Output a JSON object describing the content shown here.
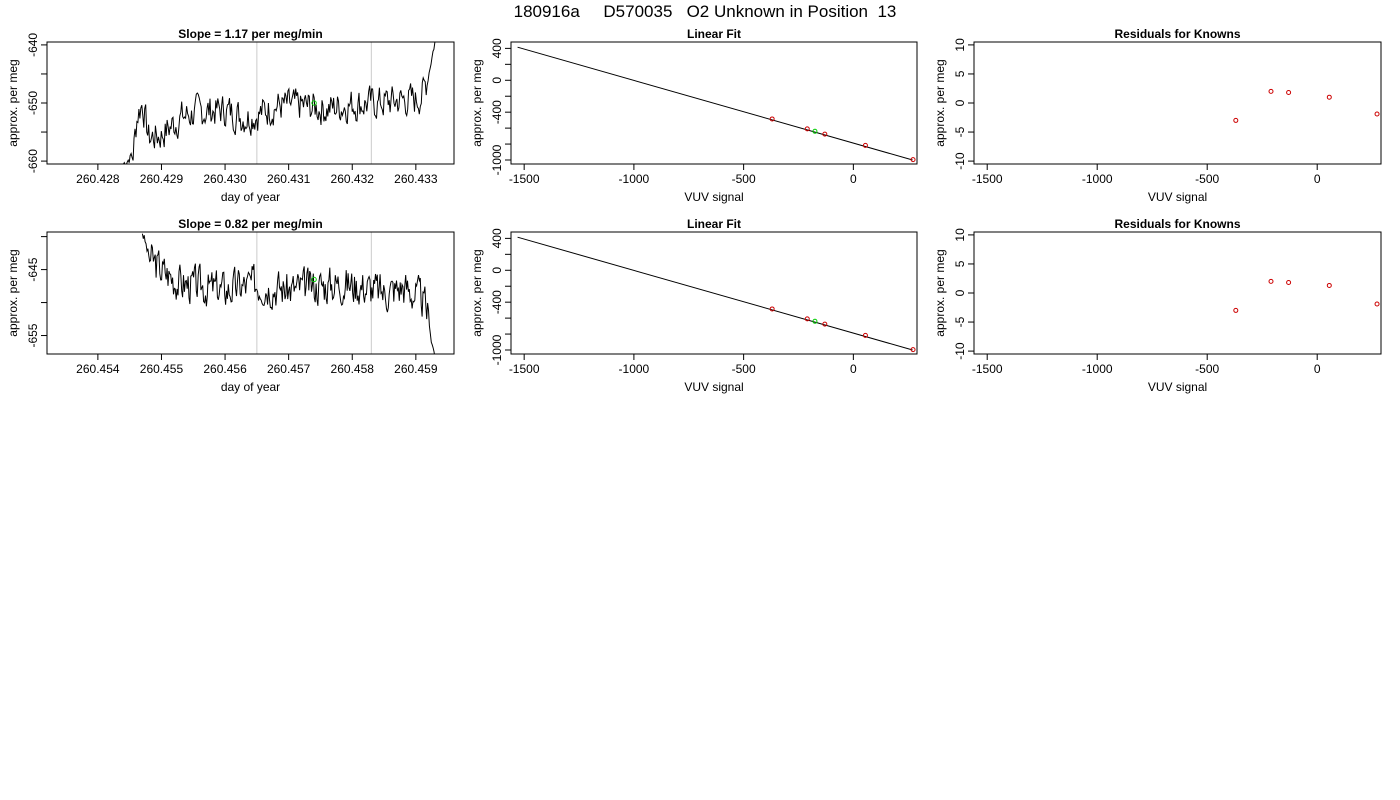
{
  "figure_title": "180916a     D570035   O2 Unknown in Position  13",
  "colors": {
    "trace": "#000000",
    "marker_line": "#cccccc",
    "known_point": "#cc0000",
    "unknown_point": "#00cc00"
  },
  "chart_data": [
    {
      "id": "timeseries-top",
      "type": "line",
      "title": "Slope =  1.17  per meg/min",
      "xlabel": "day of year",
      "ylabel": "approx. per meg",
      "xlim": [
        260.4272,
        260.4336
      ],
      "ylim": [
        -660.5,
        -639.5
      ],
      "xticks": [
        260.428,
        260.429,
        260.43,
        260.431,
        260.432,
        260.433
      ],
      "xtick_labels": [
        "260.428",
        "260.429",
        "260.430",
        "260.431",
        "260.432",
        "260.433"
      ],
      "yticks": [
        -660,
        -655,
        -650,
        -645,
        -640
      ],
      "ytick_labels": [
        "-660",
        "",
        "-650",
        "",
        "-640"
      ],
      "vlines": [
        260.4305,
        260.4323
      ],
      "unknown_point": {
        "x": 260.4314,
        "y": -650.0
      },
      "trace": {
        "x_start": 260.4284,
        "x_end": 260.4333,
        "noise_seed": 7,
        "knots": [
          [
            260.4284,
            -660.5
          ],
          [
            260.42855,
            -659
          ],
          [
            260.42862,
            -652
          ],
          [
            260.4287,
            -650
          ],
          [
            260.4288,
            -656
          ],
          [
            260.429,
            -655.5
          ],
          [
            260.4293,
            -652.5
          ],
          [
            260.4296,
            -651.5
          ],
          [
            260.43,
            -651.2
          ],
          [
            260.4303,
            -652.5
          ],
          [
            260.4305,
            -652
          ],
          [
            260.4308,
            -650.5
          ],
          [
            260.4312,
            -650.5
          ],
          [
            260.4316,
            -651
          ],
          [
            260.432,
            -650.2
          ],
          [
            260.4324,
            -650
          ],
          [
            260.4328,
            -649.5
          ],
          [
            260.433,
            -649.5
          ],
          [
            260.4331,
            -648.5
          ],
          [
            260.43318,
            -646
          ],
          [
            260.4333,
            -639.5
          ]
        ]
      }
    },
    {
      "id": "linfit-top",
      "type": "scatter",
      "title": "Linear Fit",
      "xlabel": "VUV signal",
      "ylabel": "approx. per meg",
      "xlim": [
        -1560,
        290
      ],
      "ylim": [
        -1050,
        480
      ],
      "xticks": [
        -1500,
        -1000,
        -500,
        0
      ],
      "xtick_labels": [
        "-1500",
        "-1000",
        "-500",
        "0"
      ],
      "yticks": [
        -1000,
        -800,
        -600,
        -400,
        -200,
        0,
        200,
        400
      ],
      "ytick_labels": [
        "-1000",
        "",
        "",
        "-400",
        "",
        "0",
        "",
        "400"
      ],
      "fit_line": [
        [
          -1530,
          415
        ],
        [
          270,
          -1000
        ]
      ],
      "knowns": [
        [
          -370,
          -485
        ],
        [
          -210,
          -610
        ],
        [
          -130,
          -675
        ],
        [
          55,
          -817
        ],
        [
          272,
          -995
        ]
      ],
      "unknown": [
        -175,
        -640
      ]
    },
    {
      "id": "residuals-top",
      "type": "scatter",
      "title": "Residuals for Knowns",
      "xlabel": "VUV signal",
      "ylabel": "approx. per meg",
      "xlim": [
        -1560,
        290
      ],
      "ylim": [
        -10.5,
        10.5
      ],
      "xticks": [
        -1500,
        -1000,
        -500,
        0
      ],
      "xtick_labels": [
        "-1500",
        "-1000",
        "-500",
        "0"
      ],
      "yticks": [
        -10,
        -5,
        0,
        5,
        10
      ],
      "ytick_labels": [
        "-10",
        "-5",
        "0",
        "5",
        "10"
      ],
      "knowns": [
        [
          -370,
          -3.0
        ],
        [
          -210,
          2.0
        ],
        [
          -130,
          1.8
        ],
        [
          55,
          1.0
        ],
        [
          272,
          -1.9
        ]
      ]
    },
    {
      "id": "timeseries-bottom",
      "type": "line",
      "title": "Slope =  0.82  per meg/min",
      "xlabel": "day of year",
      "ylabel": "approx. per meg",
      "xlim": [
        260.4532,
        260.4596
      ],
      "ylim": [
        -657.8,
        -639.3
      ],
      "xticks": [
        260.454,
        260.455,
        260.456,
        260.457,
        260.458,
        260.459
      ],
      "xtick_labels": [
        "260.454",
        "260.455",
        "260.456",
        "260.457",
        "260.458",
        "260.459"
      ],
      "yticks": [
        -655,
        -650,
        -645,
        -640
      ],
      "ytick_labels": [
        "-655",
        "",
        "-645",
        ""
      ],
      "vlines": [
        260.4565,
        260.4583
      ],
      "unknown_point": {
        "x": 260.4574,
        "y": -646.5
      },
      "trace": {
        "x_start": 260.4547,
        "x_end": 260.4593,
        "noise_seed": 3,
        "knots": [
          [
            260.4547,
            -639.3
          ],
          [
            260.45475,
            -641
          ],
          [
            260.4548,
            -643
          ],
          [
            260.455,
            -645
          ],
          [
            260.4553,
            -647
          ],
          [
            260.4556,
            -647.5
          ],
          [
            260.456,
            -648
          ],
          [
            260.4565,
            -647
          ],
          [
            260.457,
            -648
          ],
          [
            260.4574,
            -647.5
          ],
          [
            260.4578,
            -647
          ],
          [
            260.4582,
            -647.5
          ],
          [
            260.4585,
            -648.5
          ],
          [
            260.4588,
            -647.5
          ],
          [
            260.4591,
            -649.5
          ],
          [
            260.4592,
            -652
          ],
          [
            260.45925,
            -656
          ],
          [
            260.4593,
            -657.8
          ]
        ]
      }
    },
    {
      "id": "linfit-bottom",
      "type": "scatter",
      "title": "Linear Fit",
      "xlabel": "VUV signal",
      "ylabel": "approx. per meg",
      "xlim": [
        -1560,
        290
      ],
      "ylim": [
        -1050,
        480
      ],
      "xticks": [
        -1500,
        -1000,
        -500,
        0
      ],
      "xtick_labels": [
        "-1500",
        "-1000",
        "-500",
        "0"
      ],
      "yticks": [
        -1000,
        -800,
        -600,
        -400,
        -200,
        0,
        200,
        400
      ],
      "ytick_labels": [
        "-1000",
        "",
        "",
        "-400",
        "",
        "0",
        "",
        "400"
      ],
      "fit_line": [
        [
          -1530,
          415
        ],
        [
          270,
          -1000
        ]
      ],
      "knowns": [
        [
          -370,
          -485
        ],
        [
          -210,
          -610
        ],
        [
          -130,
          -675
        ],
        [
          55,
          -817
        ],
        [
          272,
          -995
        ]
      ],
      "unknown": [
        -175,
        -640
      ]
    },
    {
      "id": "residuals-bottom",
      "type": "scatter",
      "title": "Residuals for Knowns",
      "xlabel": "VUV signal",
      "ylabel": "approx. per meg",
      "xlim": [
        -1560,
        290
      ],
      "ylim": [
        -10.5,
        10.5
      ],
      "xticks": [
        -1500,
        -1000,
        -500,
        0
      ],
      "xtick_labels": [
        "-1500",
        "-1000",
        "-500",
        "0"
      ],
      "yticks": [
        -10,
        -5,
        0,
        5,
        10
      ],
      "ytick_labels": [
        "-10",
        "-5",
        "0",
        "5",
        "10"
      ],
      "knowns": [
        [
          -370,
          -3.0
        ],
        [
          -210,
          2.0
        ],
        [
          -130,
          1.8
        ],
        [
          55,
          1.3
        ],
        [
          272,
          -1.9
        ]
      ]
    }
  ]
}
